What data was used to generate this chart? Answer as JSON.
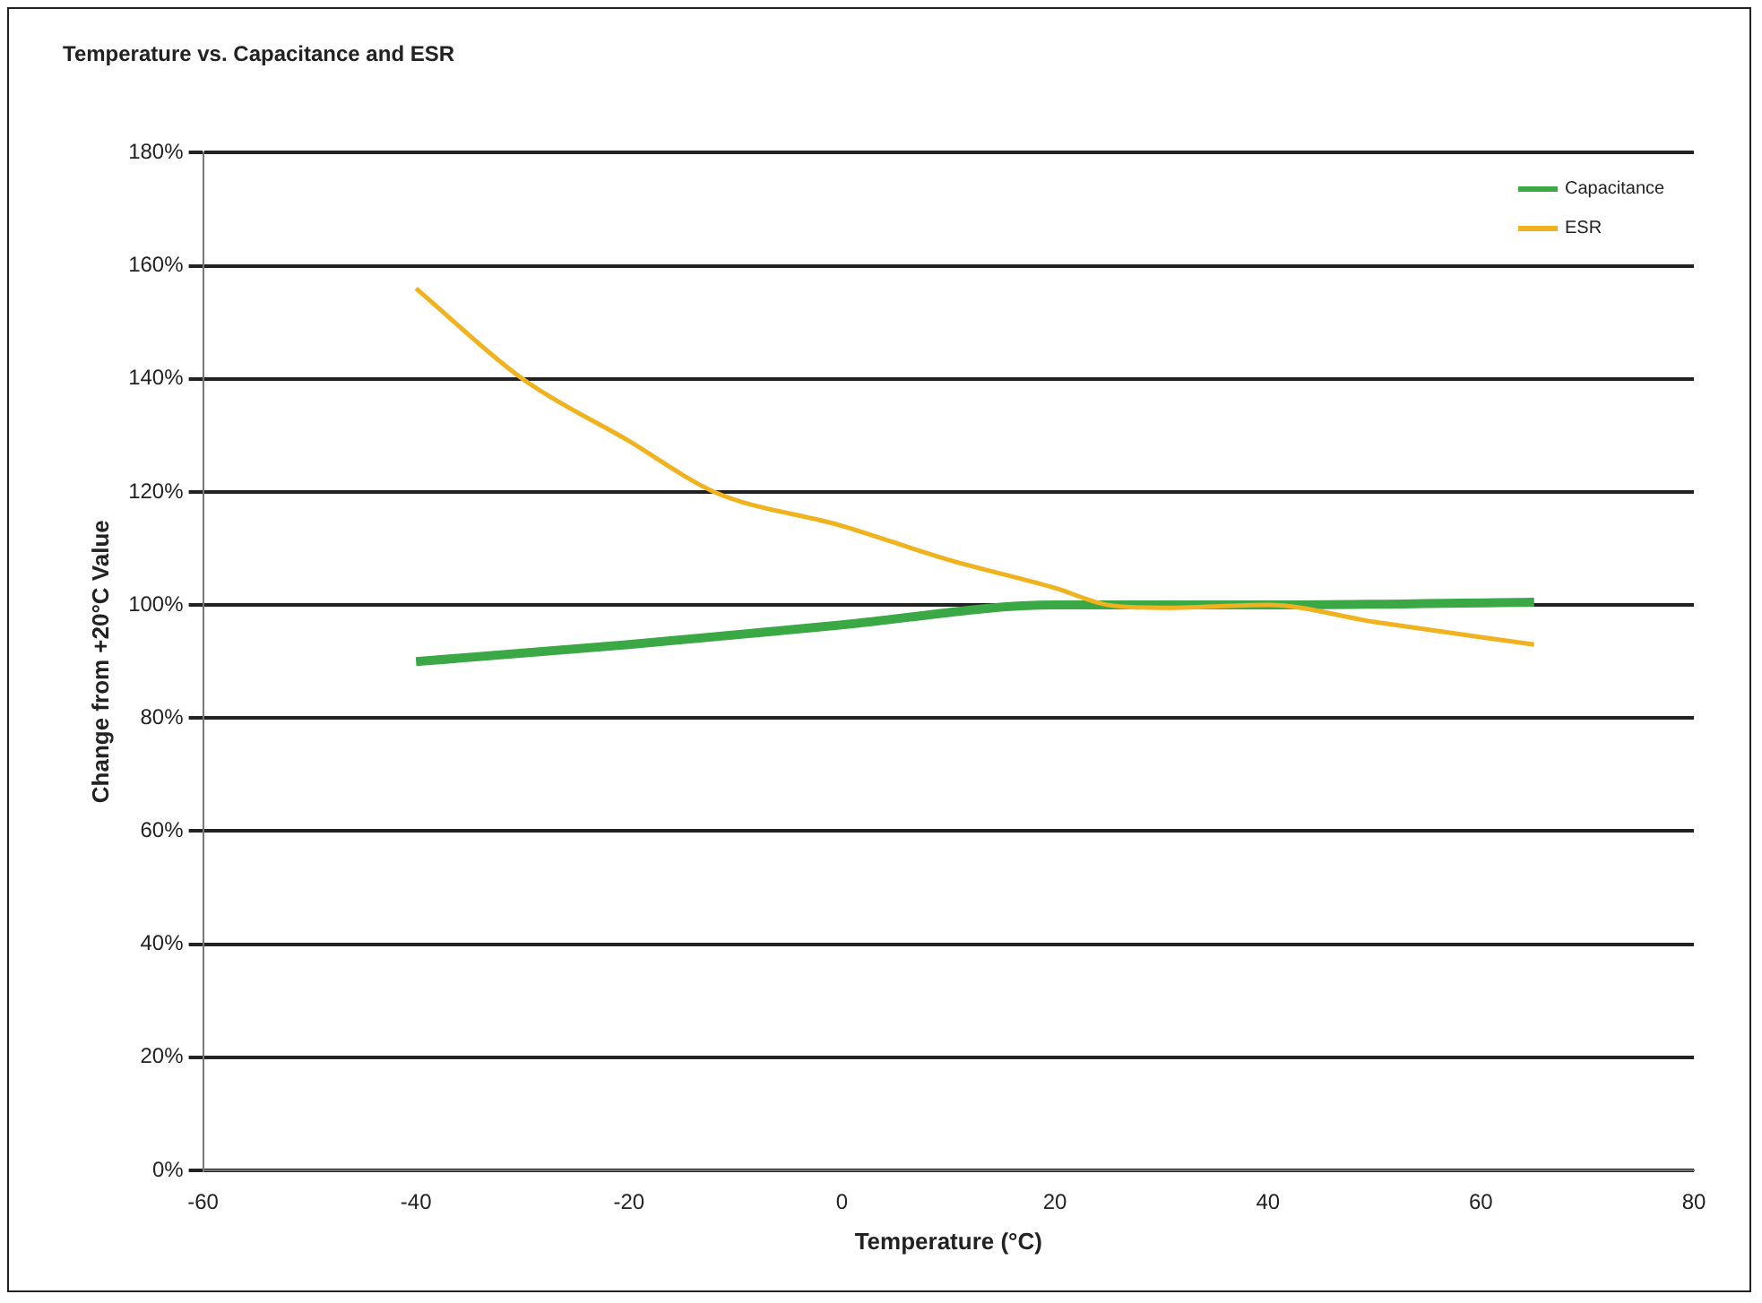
{
  "chart_data": {
    "type": "line",
    "title": "Temperature vs. Capacitance and ESR",
    "xlabel": "Temperature (°C)",
    "ylabel": "Change from +20°C Value",
    "xlim": [
      -60,
      80
    ],
    "xticks": [
      -60,
      -40,
      -20,
      0,
      20,
      40,
      60,
      80
    ],
    "ylim": [
      0,
      180
    ],
    "yticks": [
      {
        "value": 0,
        "label": "0%"
      },
      {
        "value": 20,
        "label": "20%"
      },
      {
        "value": 40,
        "label": "40%"
      },
      {
        "value": 60,
        "label": "60%"
      },
      {
        "value": 80,
        "label": "80%"
      },
      {
        "value": 100,
        "label": "100%"
      },
      {
        "value": 120,
        "label": "120%"
      },
      {
        "value": 140,
        "label": "140%"
      },
      {
        "value": 160,
        "label": "160%"
      },
      {
        "value": 180,
        "label": "180%"
      }
    ],
    "grid": "y",
    "legend": "top right",
    "marker": "none",
    "line_style": "solid",
    "series": [
      {
        "name": "Capacitance",
        "color": "#3aa844",
        "x": [
          -40,
          -20,
          0,
          20,
          25,
          40,
          65
        ],
        "values": [
          90,
          93,
          96.5,
          100,
          100,
          100,
          100.5
        ]
      },
      {
        "name": "ESR",
        "color": "#f0b21e",
        "x": [
          -40,
          -30,
          -20,
          -12,
          0,
          10,
          20,
          25,
          30,
          40,
          50,
          65
        ],
        "values": [
          156,
          140,
          129,
          120,
          114,
          108,
          103,
          100,
          99.5,
          100,
          97,
          93
        ]
      }
    ]
  }
}
